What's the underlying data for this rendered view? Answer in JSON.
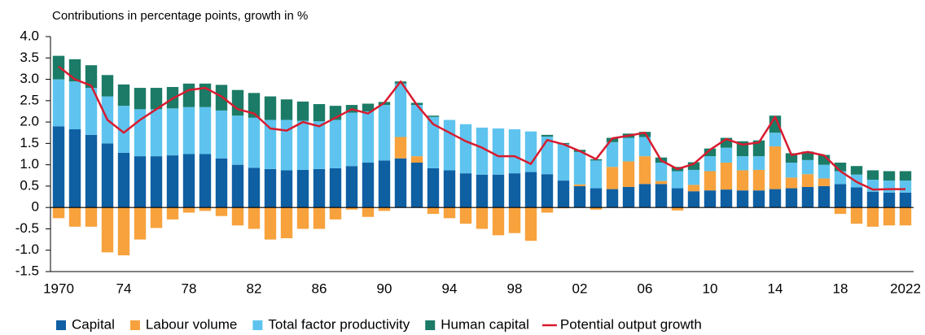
{
  "chart_data": {
    "type": "bar",
    "y_axis_label": "Contributions in percentage points, growth in %",
    "categories": [
      "1970",
      null,
      null,
      null,
      "74",
      null,
      null,
      null,
      "78",
      null,
      null,
      null,
      "82",
      null,
      null,
      null,
      "86",
      null,
      null,
      null,
      "90",
      null,
      null,
      null,
      "94",
      null,
      null,
      null,
      "98",
      null,
      null,
      null,
      "02",
      null,
      null,
      null,
      "06",
      null,
      null,
      null,
      "10",
      null,
      null,
      null,
      "14",
      null,
      null,
      null,
      "18",
      null,
      null,
      null,
      "2022"
    ],
    "ylim": [
      -1.5,
      4
    ],
    "yticks": [
      {
        "value": 4,
        "label": "4.0"
      },
      3.5,
      {
        "value": 3,
        "label": "3.0"
      },
      2.5,
      {
        "value": 2,
        "label": "2.0"
      },
      1.5,
      {
        "value": 1,
        "label": "1.0"
      },
      0.5,
      0,
      -0.5,
      {
        "value": -1,
        "label": "-1.0"
      },
      -1.5
    ],
    "stacked": true,
    "series": [
      {
        "name": "Capital",
        "color": "#0f5fa3",
        "values": [
          1.9,
          1.83,
          1.7,
          1.5,
          1.28,
          1.2,
          1.2,
          1.22,
          1.25,
          1.25,
          1.15,
          1.0,
          0.93,
          0.9,
          0.87,
          0.88,
          0.9,
          0.92,
          0.97,
          1.05,
          1.1,
          1.15,
          1.05,
          0.92,
          0.87,
          0.8,
          0.77,
          0.77,
          0.8,
          0.83,
          0.78,
          0.63,
          0.5,
          0.45,
          0.43,
          0.48,
          0.55,
          0.55,
          0.45,
          0.38,
          0.4,
          0.42,
          0.4,
          0.4,
          0.43,
          0.45,
          0.48,
          0.5,
          0.55,
          0.47,
          0.37,
          0.35,
          0.35
        ]
      },
      {
        "name": "Labour volume",
        "color": "#f7a23d",
        "values": [
          -0.25,
          -0.45,
          -0.45,
          -1.05,
          -1.12,
          -0.75,
          -0.48,
          -0.28,
          -0.12,
          -0.08,
          -0.2,
          -0.42,
          -0.5,
          -0.75,
          -0.72,
          -0.5,
          -0.5,
          -0.28,
          -0.05,
          -0.22,
          -0.08,
          0.5,
          0.15,
          -0.15,
          -0.25,
          -0.38,
          -0.5,
          -0.65,
          -0.6,
          -0.78,
          -0.12,
          -0.02,
          0.04,
          -0.05,
          0.52,
          0.6,
          0.65,
          0.07,
          -0.07,
          0.15,
          0.45,
          0.63,
          0.47,
          0.48,
          1.0,
          0.25,
          0.3,
          0.18,
          -0.15,
          -0.38,
          -0.45,
          -0.42,
          -0.42
        ]
      },
      {
        "name": "Total factor productivity",
        "color": "#5ec4ef",
        "values": [
          1.1,
          1.12,
          1.1,
          1.1,
          1.1,
          1.1,
          1.1,
          1.1,
          1.1,
          1.1,
          1.12,
          1.15,
          1.17,
          1.15,
          1.18,
          1.15,
          1.12,
          1.13,
          1.25,
          1.2,
          1.3,
          1.25,
          1.2,
          1.2,
          1.18,
          1.15,
          1.1,
          1.08,
          1.03,
          0.95,
          0.88,
          0.85,
          0.76,
          0.65,
          0.58,
          0.55,
          0.45,
          0.43,
          0.4,
          0.35,
          0.35,
          0.35,
          0.33,
          0.32,
          0.32,
          0.35,
          0.33,
          0.32,
          0.3,
          0.3,
          0.28,
          0.28,
          0.28
        ]
      },
      {
        "name": "Human capital",
        "color": "#1b7b66",
        "values": [
          0.55,
          0.52,
          0.53,
          0.5,
          0.5,
          0.5,
          0.5,
          0.5,
          0.55,
          0.55,
          0.6,
          0.6,
          0.58,
          0.55,
          0.48,
          0.45,
          0.4,
          0.33,
          0.18,
          0.18,
          0.07,
          0.05,
          0.05,
          0.03,
          0,
          0,
          0,
          0,
          0,
          0,
          0.04,
          0.03,
          0.05,
          0.03,
          0.1,
          0.1,
          0.12,
          0.12,
          0.1,
          0.18,
          0.18,
          0.23,
          0.35,
          0.37,
          0.4,
          0.22,
          0.2,
          0.23,
          0.2,
          0.2,
          0.22,
          0.22,
          0.22
        ]
      },
      {
        "name": "Potential output growth",
        "color": "#d81b2f",
        "type": "line",
        "values": [
          3.3,
          3.0,
          2.85,
          2.05,
          1.75,
          2.05,
          2.3,
          2.55,
          2.75,
          2.8,
          2.6,
          2.3,
          2.2,
          1.85,
          1.8,
          2.0,
          1.9,
          2.1,
          2.3,
          2.2,
          2.45,
          2.95,
          2.4,
          1.95,
          1.75,
          1.55,
          1.4,
          1.2,
          1.2,
          1.02,
          1.58,
          1.48,
          1.32,
          1.13,
          1.62,
          1.68,
          1.75,
          1.1,
          0.9,
          1.02,
          1.35,
          1.6,
          1.47,
          1.52,
          2.12,
          1.23,
          1.3,
          1.22,
          0.85,
          0.6,
          0.42,
          0.43,
          0.43
        ]
      }
    ]
  }
}
